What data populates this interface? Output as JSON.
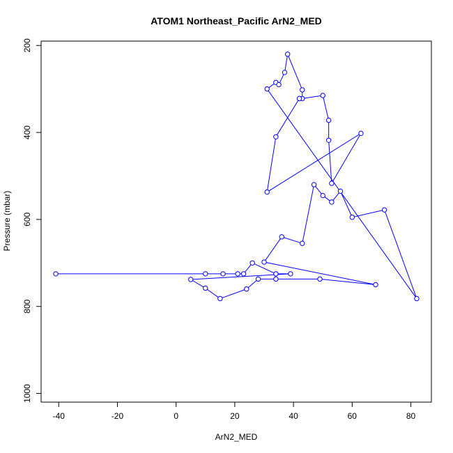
{
  "chart_data": {
    "type": "scatter",
    "title": "ATOM1 Northeast_Pacific ArN2_MED",
    "xlabel": "ArN2_MED",
    "ylabel": "Pressure (mbar)",
    "xlim": [
      -46,
      87
    ],
    "ylim": [
      1020,
      190
    ],
    "y_reversed": true,
    "x_ticks": [
      -40,
      -20,
      0,
      20,
      40,
      60,
      80
    ],
    "y_ticks": [
      200,
      400,
      600,
      800,
      1000
    ],
    "grid": false,
    "legend": "none",
    "series": [
      {
        "marker": "open-circle",
        "connect": "lines",
        "color": "#0000ff",
        "x": [
          -41,
          10,
          16,
          21,
          23,
          26,
          34,
          39,
          5,
          10,
          15,
          24,
          28,
          34,
          49,
          68,
          30,
          36,
          43,
          47,
          50,
          53,
          56,
          60,
          71,
          82,
          31,
          34,
          35,
          37,
          38,
          43,
          43,
          50,
          52,
          52,
          53,
          63,
          31,
          34,
          42
        ],
        "y": [
          725,
          725,
          725,
          725,
          725,
          700,
          725,
          725,
          738,
          758,
          782,
          760,
          737,
          737,
          737,
          750,
          698,
          640,
          655,
          520,
          545,
          560,
          535,
          595,
          578,
          782,
          300,
          285,
          290,
          262,
          220,
          302,
          322,
          315,
          372,
          418,
          517,
          402,
          537,
          410,
          322
        ]
      }
    ]
  }
}
